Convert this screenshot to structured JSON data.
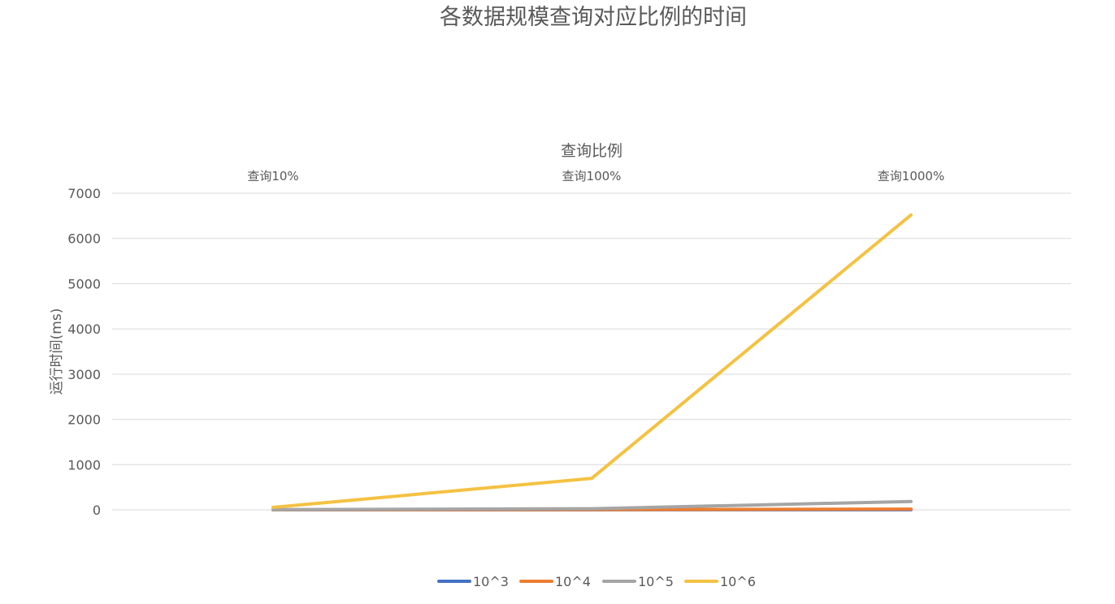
{
  "chart_data": {
    "type": "line",
    "title": "各数据规模查询对应比例的时间",
    "xlabel": "查询比例",
    "ylabel": "运行时间(ms)",
    "categories": [
      "查询10%",
      "查询100%",
      "查询1000%"
    ],
    "ylim": [
      0,
      7000
    ],
    "yticks": [
      "0",
      "1000",
      "2000",
      "3000",
      "4000",
      "5000",
      "6000",
      "7000"
    ],
    "grid": true,
    "legend_position": "bottom",
    "x_axis_position": "top",
    "series": [
      {
        "name": "10^3",
        "color": "#4472C4",
        "values": [
          0.5,
          1,
          3
        ]
      },
      {
        "name": "10^4",
        "color": "#ED7D31",
        "values": [
          2,
          5,
          15
        ]
      },
      {
        "name": "10^5",
        "color": "#A5A5A5",
        "values": [
          5,
          25,
          185
        ]
      },
      {
        "name": "10^6",
        "color": "#F4C242",
        "values": [
          55,
          695,
          6520
        ]
      }
    ]
  }
}
